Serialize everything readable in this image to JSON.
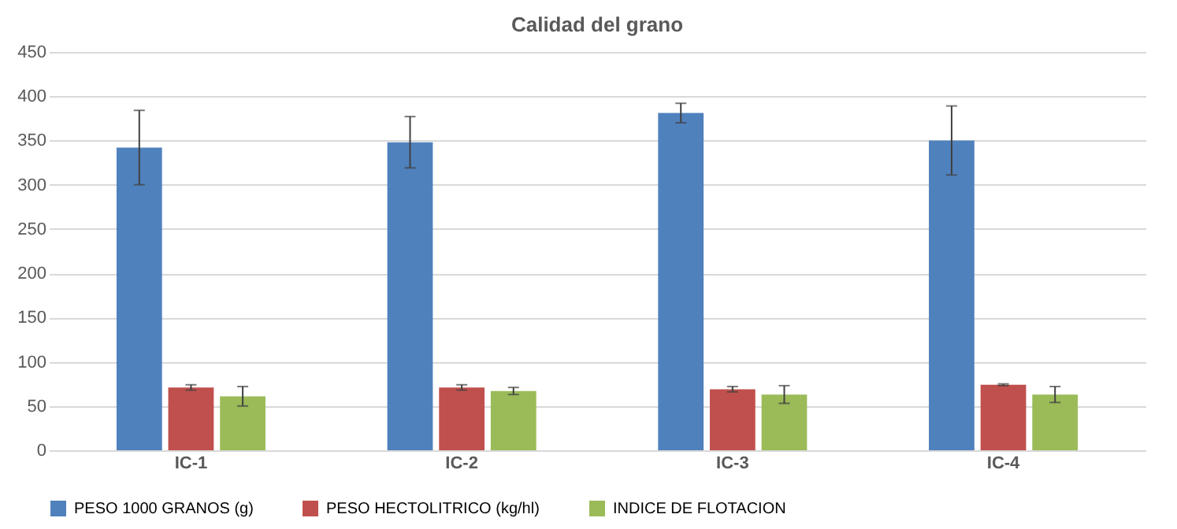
{
  "chart_data": {
    "type": "bar",
    "title": "Calidad del grano",
    "categories": [
      "IC-1",
      "IC-2",
      "IC-3",
      "IC-4"
    ],
    "series": [
      {
        "name": "PESO 1000 GRANOS (g)",
        "color": "#4f81bd",
        "values": [
          342,
          348,
          381,
          350
        ],
        "errors": [
          42,
          29,
          11,
          39
        ]
      },
      {
        "name": "PESO HECTOLITRICO (kg/hl)",
        "color": "#c0504d",
        "values": [
          71,
          71,
          69,
          74
        ],
        "errors": [
          3,
          3,
          3,
          1
        ]
      },
      {
        "name": "INDICE DE FLOTACION",
        "color": "#9bbb59",
        "values": [
          61,
          67,
          63,
          63
        ],
        "errors": [
          11,
          4,
          10,
          9
        ]
      }
    ],
    "ylim": [
      0,
      450
    ],
    "yticks": [
      0,
      50,
      100,
      150,
      200,
      250,
      300,
      350,
      400,
      450
    ],
    "grid": "y",
    "legend": "bottom"
  }
}
